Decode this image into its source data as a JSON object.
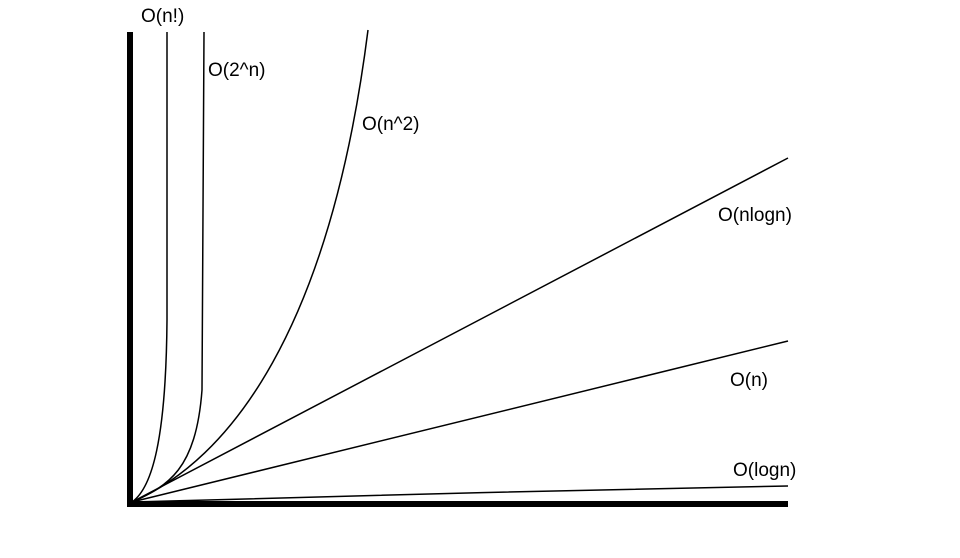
{
  "chart_data": {
    "type": "line",
    "title": "",
    "xlabel": "",
    "ylabel": "",
    "grid": false,
    "legend": "none",
    "series": [
      {
        "name": "O(n!)",
        "curve": "factorial"
      },
      {
        "name": "O(2^n)",
        "curve": "exponential"
      },
      {
        "name": "O(n^2)",
        "curve": "quadratic"
      },
      {
        "name": "O(nlogn)",
        "curve": "linearithmic"
      },
      {
        "name": "O(n)",
        "curve": "linear"
      },
      {
        "name": "O(logn)",
        "curve": "logarithmic"
      }
    ]
  },
  "colors": {
    "line": "#000000",
    "axis": "#000000",
    "background": "#ffffff"
  }
}
